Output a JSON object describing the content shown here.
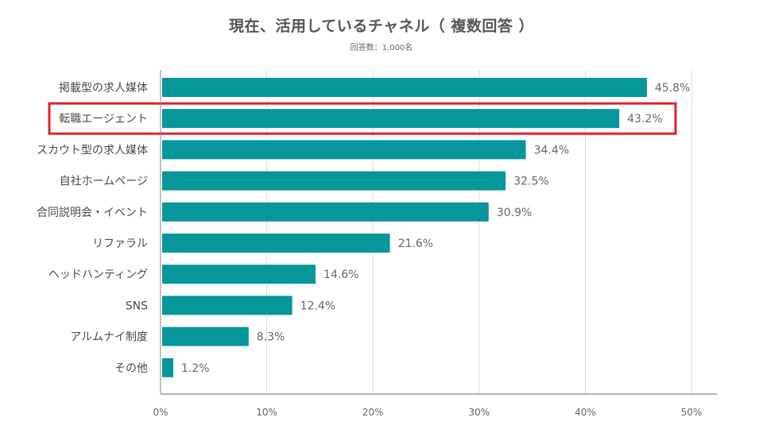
{
  "chart_data": {
    "type": "bar",
    "orientation": "horizontal",
    "title": "現在、活用しているチャネル（ 複数回答 ）",
    "subtitle": "回答数：1,000名",
    "categories": [
      "掲載型の求人媒体",
      "転職エージェント",
      "スカウト型の求人媒体",
      "自社ホームページ",
      "合同説明会・イベント",
      "リファラル",
      "ヘッドハンティング",
      "SNS",
      "アルムナイ制度",
      "その他"
    ],
    "values": [
      45.8,
      43.2,
      34.4,
      32.5,
      30.9,
      21.6,
      14.6,
      12.4,
      8.3,
      1.2
    ],
    "value_labels": [
      "45.8%",
      "43.2%",
      "34.4%",
      "32.5%",
      "30.9%",
      "21.6%",
      "14.6%",
      "12.4%",
      "8.3%",
      "1.2%"
    ],
    "xlim": [
      0,
      50
    ],
    "x_ticks": [
      0,
      10,
      20,
      30,
      40,
      50
    ],
    "x_tick_labels": [
      "0%",
      "10%",
      "20%",
      "30%",
      "40%",
      "50%"
    ],
    "grid": true,
    "highlighted_category": "転職エージェント",
    "colors": {
      "bar": "#07969a",
      "highlight": "#e5202a",
      "grid": "#d9d9d9",
      "axis": "#888888"
    }
  }
}
